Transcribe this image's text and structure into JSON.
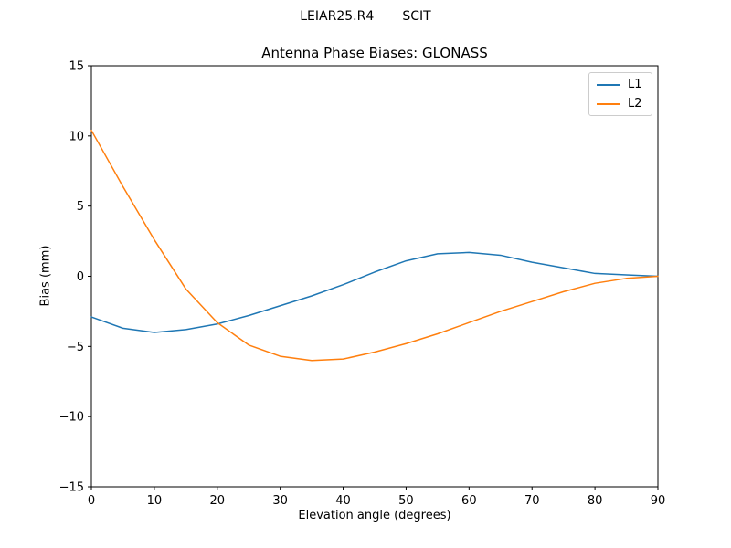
{
  "figure": {
    "suptitle": "LEIAR25.R4       SCIT",
    "background": "#ffffff"
  },
  "chart_data": {
    "type": "line",
    "title": "Antenna Phase Biases: GLONASS",
    "xlabel": "Elevation angle (degrees)",
    "ylabel": "Bias (mm)",
    "xlim": [
      0,
      90
    ],
    "ylim": [
      -15,
      15
    ],
    "xticks": [
      0,
      10,
      20,
      30,
      40,
      50,
      60,
      70,
      80,
      90
    ],
    "xtick_labels": [
      "0",
      "10",
      "20",
      "30",
      "40",
      "50",
      "60",
      "70",
      "80",
      "90"
    ],
    "yticks": [
      -15,
      -10,
      -5,
      0,
      5,
      10,
      15
    ],
    "ytick_labels": [
      "−15",
      "−10",
      "−5",
      "0",
      "5",
      "10",
      "15"
    ],
    "grid": false,
    "legend": {
      "position": "upper right",
      "entries": [
        "L1",
        "L2"
      ]
    },
    "x": [
      0,
      5,
      10,
      15,
      20,
      25,
      30,
      35,
      40,
      45,
      50,
      55,
      60,
      65,
      70,
      75,
      80,
      85,
      90
    ],
    "series": [
      {
        "name": "L1",
        "color": "#1f77b4",
        "values": [
          -2.9,
          -3.7,
          -4.0,
          -3.8,
          -3.4,
          -2.8,
          -2.1,
          -1.4,
          -0.6,
          0.3,
          1.1,
          1.6,
          1.7,
          1.5,
          1.0,
          0.6,
          0.2,
          0.1,
          0.0
        ]
      },
      {
        "name": "L2",
        "color": "#ff7f0e",
        "values": [
          10.4,
          6.4,
          2.6,
          -0.9,
          -3.3,
          -4.9,
          -5.7,
          -6.0,
          -5.9,
          -5.4,
          -4.8,
          -4.1,
          -3.3,
          -2.5,
          -1.8,
          -1.1,
          -0.5,
          -0.15,
          0.0
        ]
      }
    ]
  }
}
